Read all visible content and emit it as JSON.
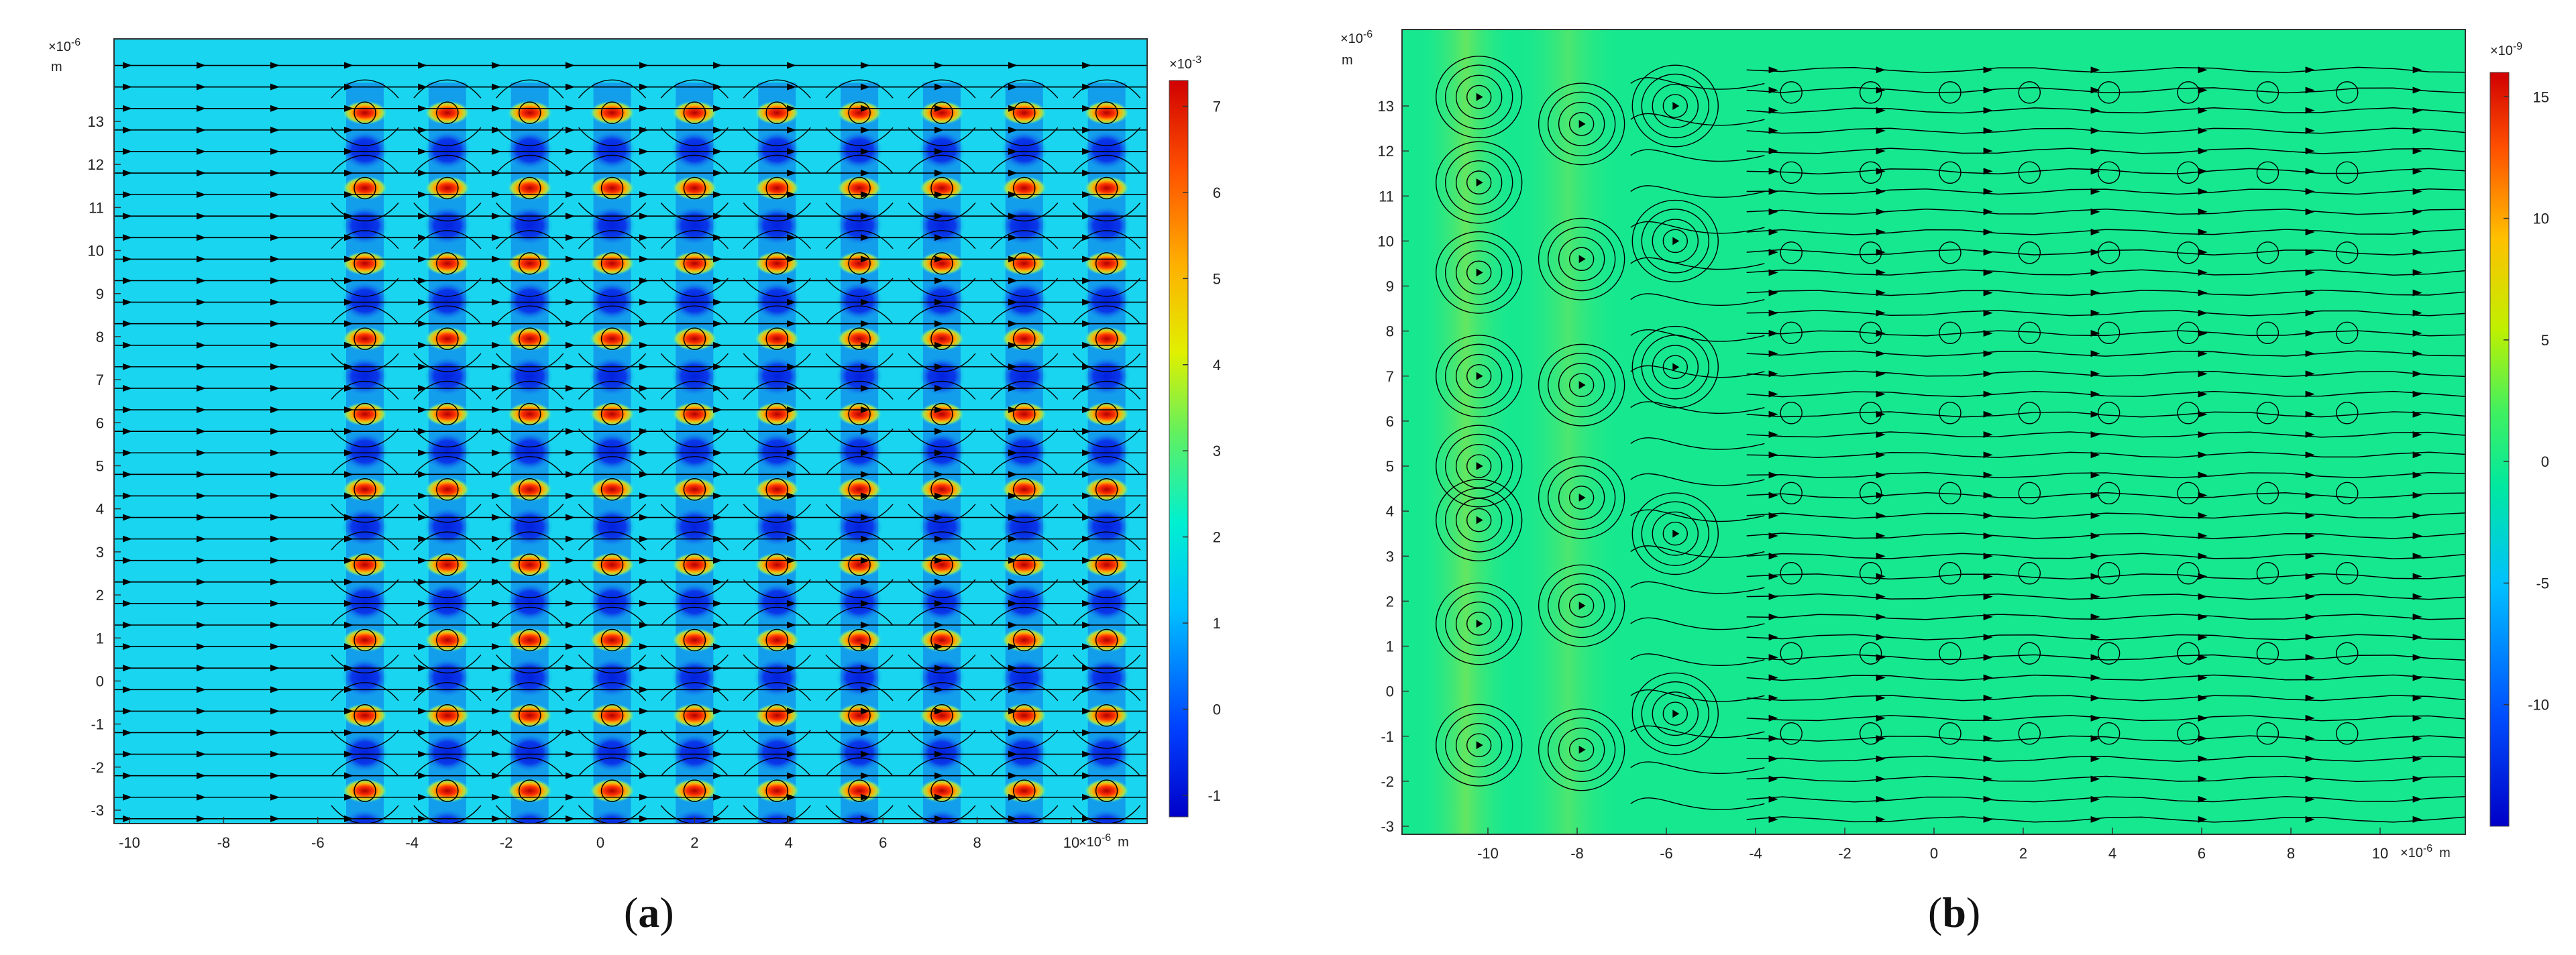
{
  "figure": {
    "caption_a": "a",
    "caption_b": "b"
  },
  "panel_a": {
    "y_exponent": "×10",
    "y_exponent_power": "-6",
    "y_unit": "m",
    "x_exponent": "×10",
    "x_exponent_power": "-6",
    "x_unit": "m",
    "x_ticks": [
      "-10",
      "-8",
      "-6",
      "-4",
      "-2",
      "0",
      "2",
      "4",
      "6",
      "8",
      "10"
    ],
    "y_ticks": [
      "13",
      "12",
      "11",
      "10",
      "9",
      "8",
      "7",
      "6",
      "5",
      "4",
      "3",
      "2",
      "1",
      "0",
      "-1",
      "-2",
      "-3"
    ],
    "colorbar": {
      "exponent": "×10",
      "exponent_power": "-3",
      "ticks": [
        "7",
        "6",
        "5",
        "4",
        "3",
        "2",
        "1",
        "0",
        "-1"
      ],
      "range": [
        -1.25,
        7.3
      ]
    }
  },
  "panel_b": {
    "y_exponent": "×10",
    "y_exponent_power": "-6",
    "y_unit": "m",
    "x_exponent": "×10",
    "x_exponent_power": "-6",
    "x_unit": "m",
    "x_ticks": [
      "-10",
      "-8",
      "-6",
      "-4",
      "-2",
      "0",
      "2",
      "4",
      "6",
      "8",
      "10"
    ],
    "y_ticks": [
      "13",
      "12",
      "11",
      "10",
      "9",
      "8",
      "7",
      "6",
      "5",
      "4",
      "3",
      "2",
      "1",
      "0",
      "-1",
      "-2",
      "-3"
    ],
    "colorbar": {
      "exponent": "×10",
      "exponent_power": "-9",
      "ticks": [
        "15",
        "10",
        "5",
        "0",
        "-5",
        "-10"
      ],
      "range": [
        -15,
        16
      ]
    }
  },
  "colors": {
    "a_background": "#19d5ef",
    "a_dark": "#0a22e0",
    "a_hot": "#e8231a",
    "b_background": "#16e890",
    "b_warm": "#8fe24a"
  }
}
